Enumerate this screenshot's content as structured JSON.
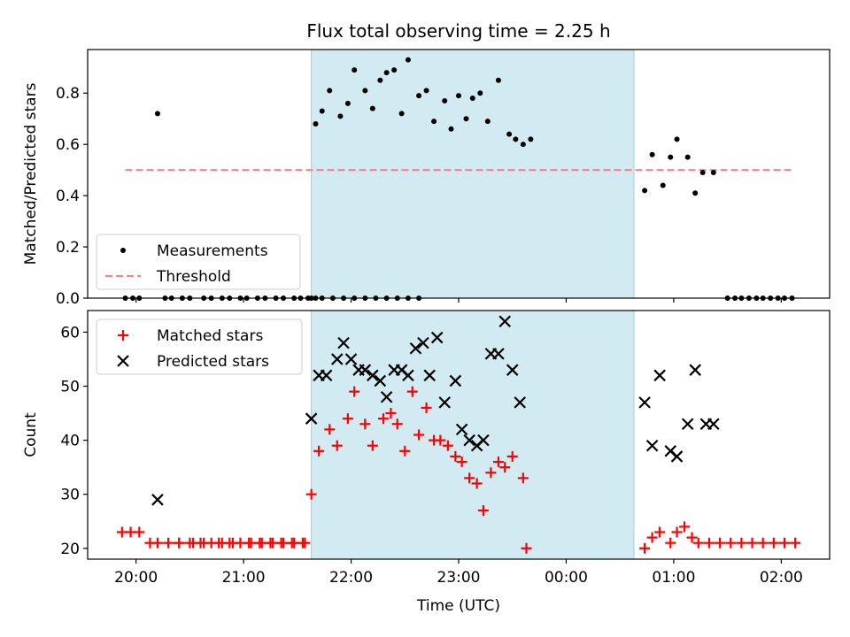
{
  "title": "Flux total observing time = 2.25 h",
  "chart_data": [
    {
      "type": "scatter",
      "panel": "top",
      "title": "Flux total observing time = 2.25 h",
      "xlabel": "",
      "ylabel": "Matched/Predicted stars",
      "x_unit": "hours since 00:00 UTC (negative = previous day)",
      "xlim": [
        -4.45,
        2.45
      ],
      "ylim": [
        0.0,
        0.97
      ],
      "yticks": [
        0.0,
        0.2,
        0.4,
        0.6,
        0.8
      ],
      "ytick_labels": [
        "0.0",
        "0.2",
        "0.4",
        "0.6",
        "0.8"
      ],
      "grid": false,
      "legend_position": "lower-left",
      "shaded_interval": {
        "x_start": -2.37,
        "x_end": 0.63,
        "color": "#add8e6"
      },
      "threshold": {
        "name": "Threshold",
        "y": 0.5,
        "x_start": -4.1,
        "x_end": 2.1,
        "color": "#ff7f7f"
      },
      "series": [
        {
          "name": "Measurements",
          "marker": "dot",
          "color": "#000000",
          "points": [
            [
              -4.1,
              0
            ],
            [
              -4.03,
              0
            ],
            [
              -3.97,
              0
            ],
            [
              -3.8,
              0.72
            ],
            [
              -3.73,
              0
            ],
            [
              -3.67,
              0
            ],
            [
              -3.57,
              0
            ],
            [
              -3.5,
              0
            ],
            [
              -3.37,
              0
            ],
            [
              -3.3,
              0
            ],
            [
              -3.2,
              0
            ],
            [
              -3.13,
              0
            ],
            [
              -3.03,
              0
            ],
            [
              -2.97,
              0
            ],
            [
              -2.87,
              0
            ],
            [
              -2.8,
              0
            ],
            [
              -2.7,
              0
            ],
            [
              -2.63,
              0
            ],
            [
              -2.53,
              0
            ],
            [
              -2.47,
              0
            ],
            [
              -2.4,
              0
            ],
            [
              -2.33,
              0
            ],
            [
              -2.37,
              0
            ],
            [
              -2.27,
              0
            ],
            [
              -2.17,
              0
            ],
            [
              -2.07,
              0
            ],
            [
              -1.97,
              0
            ],
            [
              -1.87,
              0
            ],
            [
              -1.77,
              0
            ],
            [
              -1.67,
              0
            ],
            [
              -1.57,
              0
            ],
            [
              -1.47,
              0
            ],
            [
              -1.37,
              0
            ],
            [
              -2.33,
              0.68
            ],
            [
              -2.27,
              0.73
            ],
            [
              -2.2,
              0.81
            ],
            [
              -2.1,
              0.71
            ],
            [
              -2.03,
              0.76
            ],
            [
              -1.97,
              0.89
            ],
            [
              -1.87,
              0.81
            ],
            [
              -1.8,
              0.74
            ],
            [
              -1.73,
              0.85
            ],
            [
              -1.67,
              0.88
            ],
            [
              -1.6,
              0.89
            ],
            [
              -1.53,
              0.72
            ],
            [
              -1.47,
              0.93
            ],
            [
              -1.37,
              0.79
            ],
            [
              -1.3,
              0.81
            ],
            [
              -1.23,
              0.69
            ],
            [
              -1.13,
              0.77
            ],
            [
              -1.07,
              0.66
            ],
            [
              -1.0,
              0.79
            ],
            [
              -0.93,
              0.7
            ],
            [
              -0.87,
              0.78
            ],
            [
              -0.8,
              0.8
            ],
            [
              -0.73,
              0.69
            ],
            [
              -0.63,
              0.85
            ],
            [
              -0.53,
              0.64
            ],
            [
              -0.47,
              0.62
            ],
            [
              -0.4,
              0.6
            ],
            [
              -0.33,
              0.62
            ],
            [
              0.73,
              0.42
            ],
            [
              0.8,
              0.56
            ],
            [
              0.9,
              0.44
            ],
            [
              0.97,
              0.55
            ],
            [
              1.03,
              0.62
            ],
            [
              1.13,
              0.55
            ],
            [
              1.2,
              0.41
            ],
            [
              1.27,
              0.49
            ],
            [
              1.37,
              0.49
            ],
            [
              1.5,
              0
            ],
            [
              1.57,
              0
            ],
            [
              1.63,
              0
            ],
            [
              1.7,
              0
            ],
            [
              1.77,
              0
            ],
            [
              1.83,
              0
            ],
            [
              1.9,
              0
            ],
            [
              1.97,
              0
            ],
            [
              2.03,
              0
            ],
            [
              2.1,
              0
            ]
          ]
        }
      ]
    },
    {
      "type": "scatter",
      "panel": "bottom",
      "xlabel": "Time (UTC)",
      "ylabel": "Count",
      "x_unit": "hours since 00:00 UTC (negative = previous day)",
      "xlim": [
        -4.45,
        2.45
      ],
      "ylim": [
        18,
        64
      ],
      "xticks": [
        -4,
        -3,
        -2,
        -1,
        0,
        1,
        2
      ],
      "xtick_labels": [
        "20:00",
        "21:00",
        "22:00",
        "23:00",
        "00:00",
        "01:00",
        "02:00"
      ],
      "yticks": [
        20,
        30,
        40,
        50,
        60
      ],
      "ytick_labels": [
        "20",
        "30",
        "40",
        "50",
        "60"
      ],
      "grid": false,
      "legend_position": "upper-left",
      "shaded_interval": {
        "x_start": -2.37,
        "x_end": 0.63,
        "color": "#add8e6"
      },
      "series": [
        {
          "name": "Matched stars",
          "marker": "plus",
          "color": "#ff0000",
          "points": [
            [
              -4.13,
              23
            ],
            [
              -4.05,
              23
            ],
            [
              -3.97,
              23
            ],
            [
              -3.87,
              21
            ],
            [
              -3.8,
              21
            ],
            [
              -3.7,
              21
            ],
            [
              -3.6,
              21
            ],
            [
              -3.47,
              21
            ],
            [
              -3.37,
              21
            ],
            [
              -3.23,
              21
            ],
            [
              -3.13,
              21
            ],
            [
              -3.03,
              21
            ],
            [
              -2.93,
              21
            ],
            [
              -2.83,
              21
            ],
            [
              -2.73,
              21
            ],
            [
              -2.63,
              21
            ],
            [
              -2.53,
              21
            ],
            [
              -2.43,
              21
            ],
            [
              -2.37,
              30
            ],
            [
              -2.3,
              38
            ],
            [
              -2.2,
              42
            ],
            [
              -2.13,
              39
            ],
            [
              -2.03,
              44
            ],
            [
              -1.97,
              49
            ],
            [
              -1.87,
              43
            ],
            [
              -1.8,
              39
            ],
            [
              -1.7,
              44
            ],
            [
              -1.63,
              45
            ],
            [
              -1.57,
              43
            ],
            [
              -1.5,
              38
            ],
            [
              -1.43,
              49
            ],
            [
              -1.37,
              41
            ],
            [
              -1.3,
              46
            ],
            [
              -1.23,
              40
            ],
            [
              -1.17,
              40
            ],
            [
              -1.1,
              39
            ],
            [
              -1.03,
              37
            ],
            [
              -0.97,
              36
            ],
            [
              -0.9,
              33
            ],
            [
              -0.83,
              32
            ],
            [
              -0.77,
              27
            ],
            [
              -0.7,
              34
            ],
            [
              -0.63,
              36
            ],
            [
              -0.57,
              35
            ],
            [
              -0.5,
              37
            ],
            [
              -0.4,
              33
            ],
            [
              -0.37,
              20
            ],
            [
              0.73,
              20
            ],
            [
              0.8,
              22
            ],
            [
              0.87,
              23
            ],
            [
              0.97,
              21
            ],
            [
              1.03,
              23
            ],
            [
              1.1,
              24
            ],
            [
              1.17,
              22
            ],
            [
              1.23,
              21
            ],
            [
              1.33,
              21
            ],
            [
              1.43,
              21
            ],
            [
              1.53,
              21
            ],
            [
              1.63,
              21
            ],
            [
              1.73,
              21
            ],
            [
              1.83,
              21
            ],
            [
              1.93,
              21
            ],
            [
              2.03,
              21
            ],
            [
              2.13,
              21
            ],
            [
              -3.6,
              21
            ],
            [
              -3.5,
              21
            ],
            [
              -3.4,
              21
            ],
            [
              -3.3,
              21
            ],
            [
              -3.2,
              21
            ],
            [
              -3.1,
              21
            ],
            [
              -2.95,
              21
            ],
            [
              -2.85,
              21
            ],
            [
              -2.75,
              21
            ],
            [
              -2.65,
              21
            ],
            [
              -2.55,
              21
            ],
            [
              -2.45,
              21
            ]
          ]
        },
        {
          "name": "Predicted stars",
          "marker": "x",
          "color": "#000000",
          "points": [
            [
              -3.8,
              29
            ],
            [
              -2.37,
              44
            ],
            [
              -2.3,
              52
            ],
            [
              -2.23,
              52
            ],
            [
              -2.13,
              55
            ],
            [
              -2.07,
              58
            ],
            [
              -2.0,
              55
            ],
            [
              -1.93,
              53
            ],
            [
              -1.87,
              53
            ],
            [
              -1.8,
              52
            ],
            [
              -1.73,
              51
            ],
            [
              -1.67,
              48
            ],
            [
              -1.6,
              53
            ],
            [
              -1.53,
              53
            ],
            [
              -1.47,
              52
            ],
            [
              -1.4,
              57
            ],
            [
              -1.33,
              58
            ],
            [
              -1.27,
              52
            ],
            [
              -1.2,
              59
            ],
            [
              -1.13,
              47
            ],
            [
              -1.03,
              51
            ],
            [
              -0.97,
              42
            ],
            [
              -0.9,
              40
            ],
            [
              -0.83,
              39
            ],
            [
              -0.77,
              40
            ],
            [
              -0.7,
              56
            ],
            [
              -0.63,
              56
            ],
            [
              -0.57,
              62
            ],
            [
              -0.5,
              53
            ],
            [
              -0.43,
              47
            ],
            [
              0.73,
              47
            ],
            [
              0.8,
              39
            ],
            [
              0.87,
              52
            ],
            [
              0.97,
              38
            ],
            [
              1.03,
              37
            ],
            [
              1.13,
              43
            ],
            [
              1.2,
              53
            ],
            [
              1.3,
              43
            ],
            [
              1.37,
              43
            ]
          ]
        }
      ]
    }
  ],
  "legend_top": [
    {
      "label": "Measurements",
      "marker": "dot",
      "color": "#000000"
    },
    {
      "label": "Threshold",
      "marker": "dashed-line",
      "color": "#ff7f7f"
    }
  ],
  "legend_bottom": [
    {
      "label": "Matched stars",
      "marker": "plus",
      "color": "#ff0000"
    },
    {
      "label": "Predicted stars",
      "marker": "x",
      "color": "#000000"
    }
  ]
}
